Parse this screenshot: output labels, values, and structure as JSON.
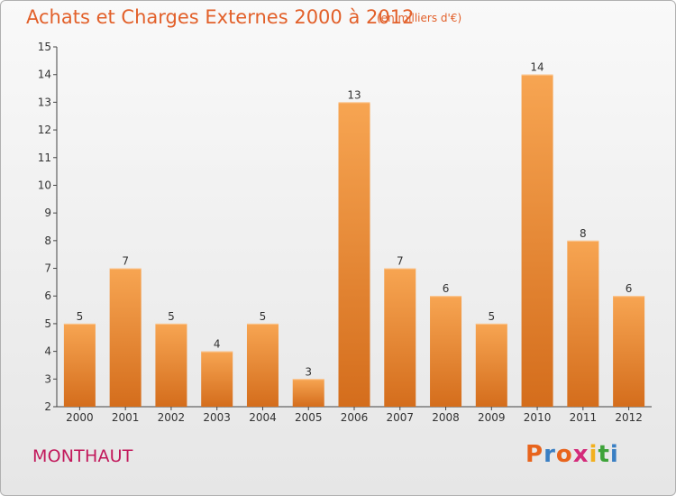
{
  "title": "Achats et Charges Externes 2000 à 2012",
  "subtitle": "(en milliers d'€)",
  "commune": "MONTHAUT",
  "logo": {
    "text": "Proxiti",
    "colors": [
      "#e8641c",
      "#3a7fc3",
      "#e8641c",
      "#d42b7a",
      "#f2b01e",
      "#3ea33a",
      "#3a7fc3"
    ]
  },
  "colors": {
    "title": "#e2602a",
    "commune": "#c2185b",
    "bar_light": "#f7a14d",
    "bar_dark": "#d9701d"
  },
  "chart_data": {
    "type": "bar",
    "categories": [
      "2000",
      "2001",
      "2002",
      "2003",
      "2004",
      "2005",
      "2006",
      "2007",
      "2008",
      "2009",
      "2010",
      "2011",
      "2012"
    ],
    "values": [
      5,
      7,
      5,
      4,
      5,
      3,
      13,
      7,
      6,
      5,
      14,
      8,
      6
    ],
    "ylim": [
      2,
      15
    ],
    "yticks": [
      2,
      3,
      4,
      5,
      6,
      7,
      8,
      9,
      10,
      11,
      12,
      13,
      14,
      15
    ],
    "grid": false,
    "xlabel": "",
    "ylabel": ""
  }
}
